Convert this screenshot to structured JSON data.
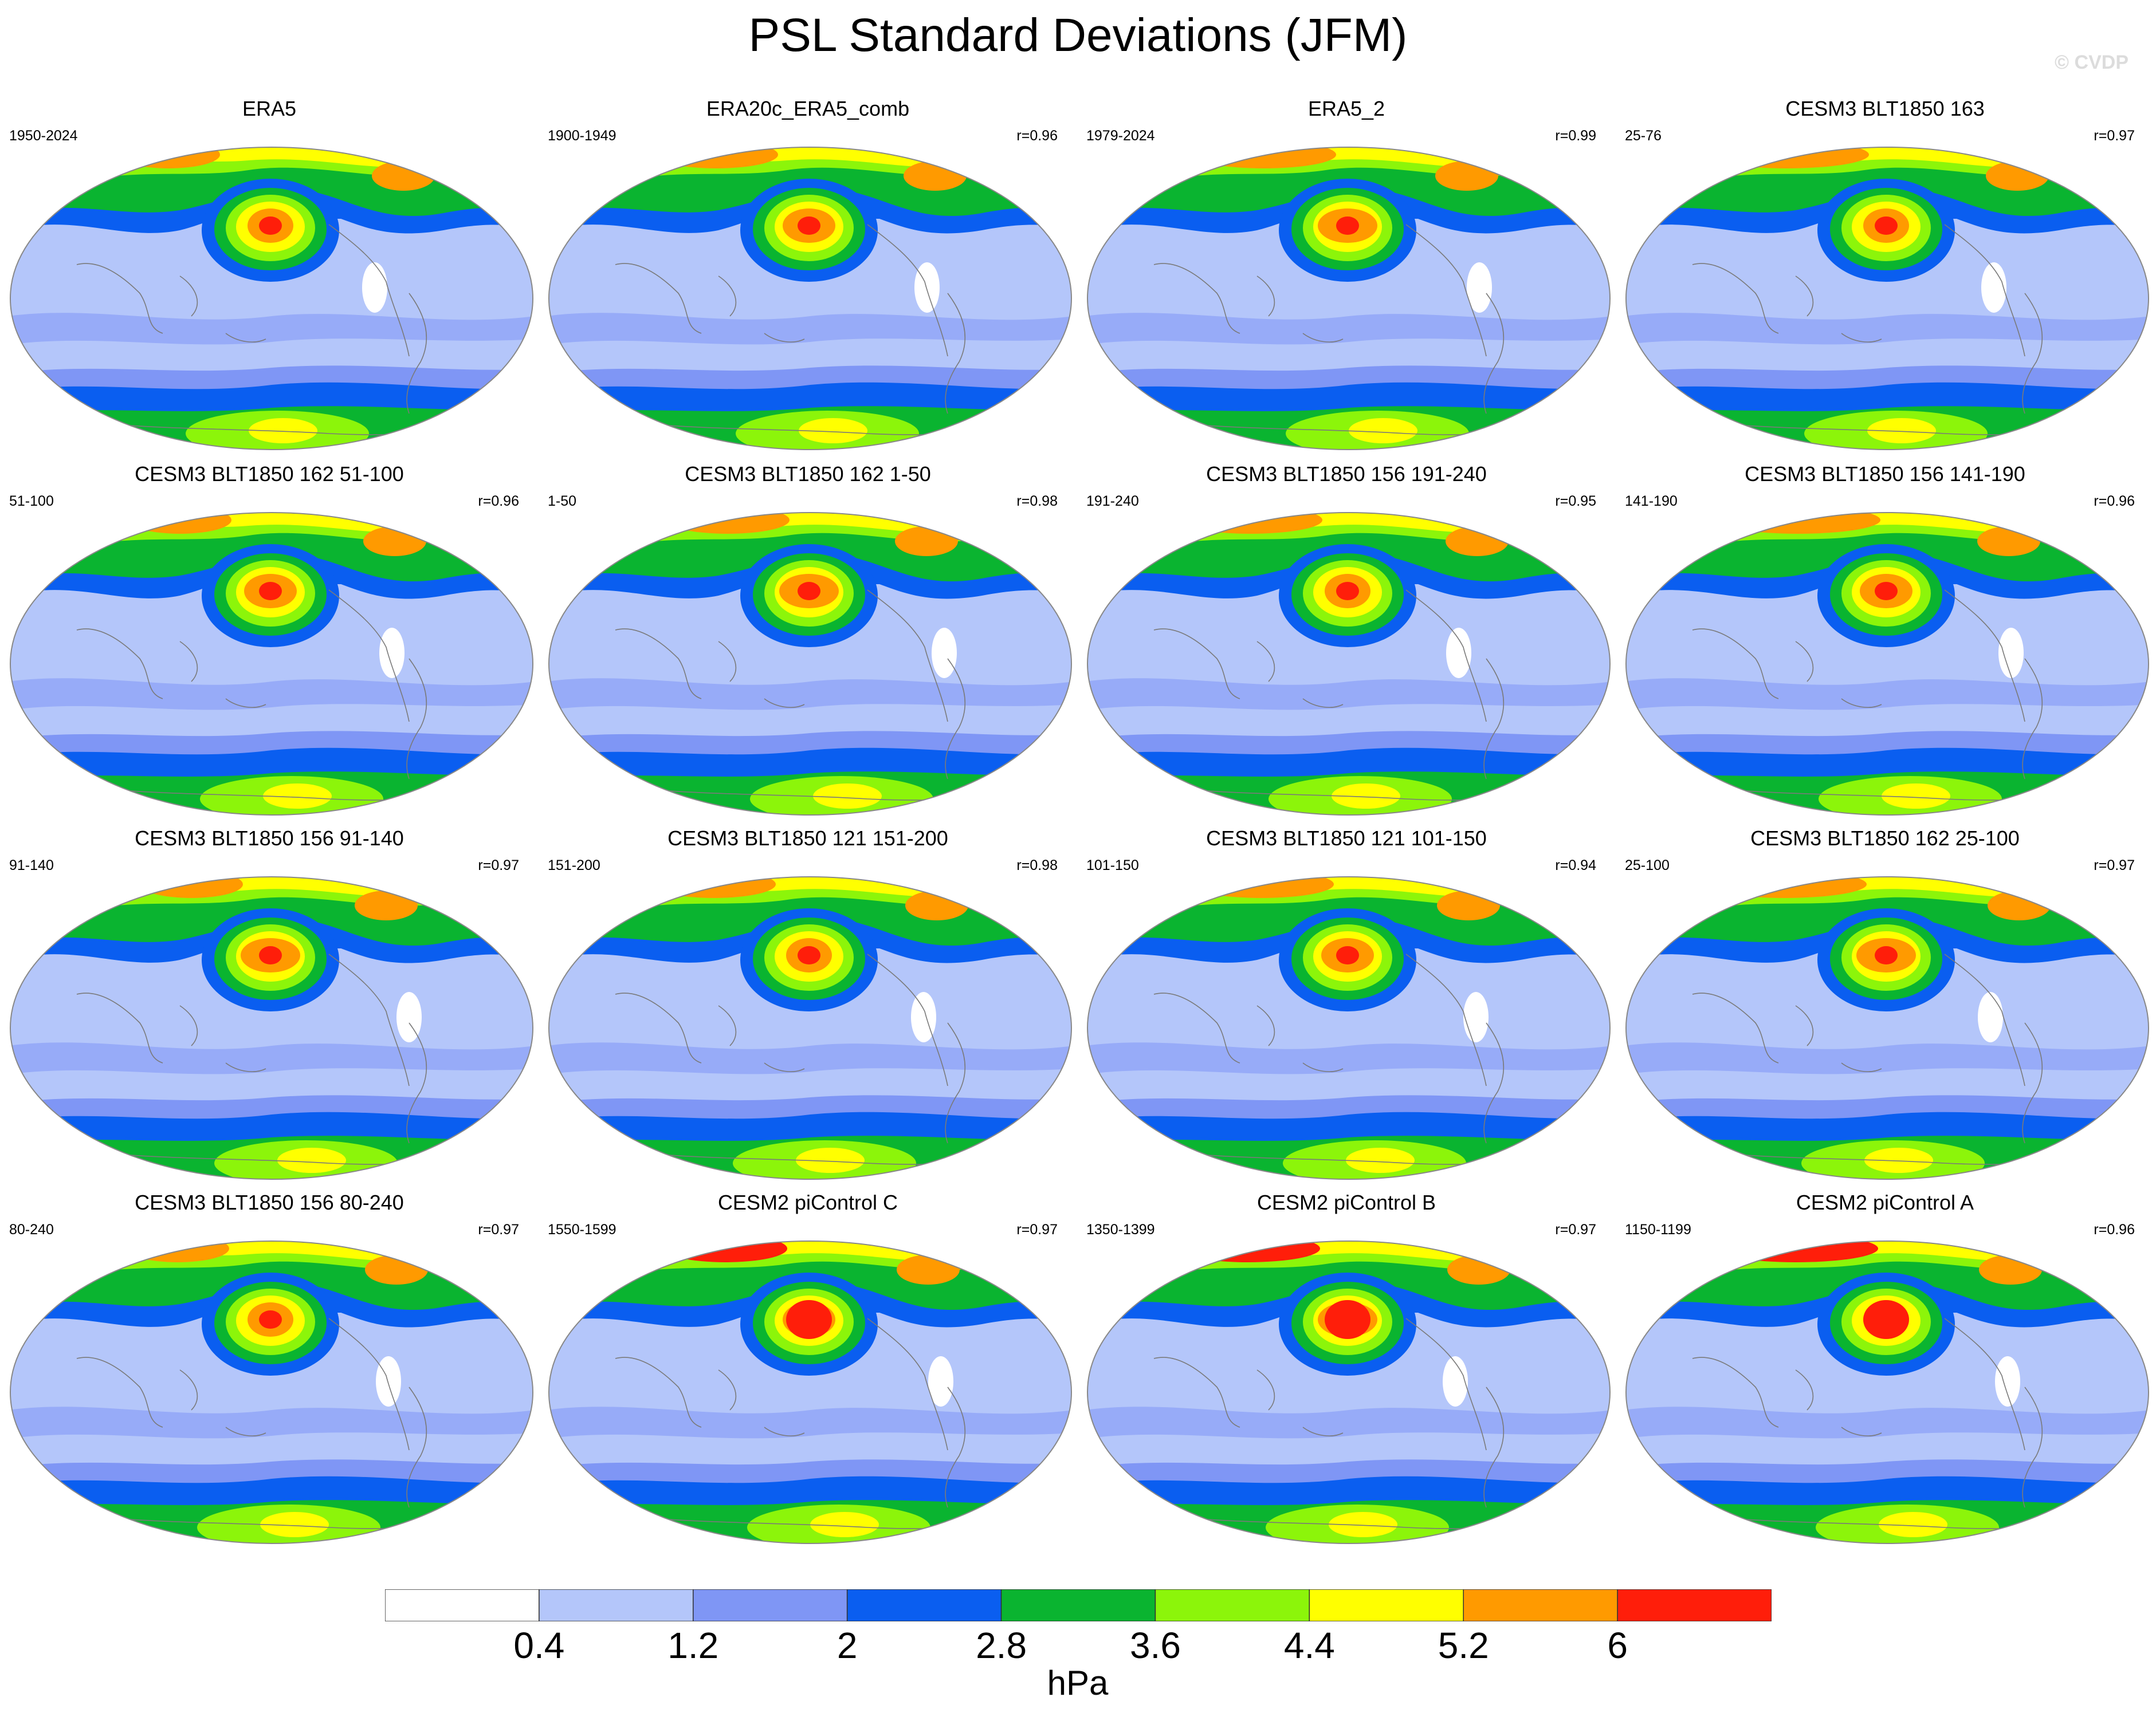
{
  "title": "PSL Standard Deviations (JFM)",
  "watermark": "© CVDP",
  "colors": {
    "levels": [
      "#ffffff",
      "#b4c6fa",
      "#7f96f5",
      "#0a5ef0",
      "#0ab430",
      "#8cf50a",
      "#ffff00",
      "#ff9a00",
      "#ff1e0a"
    ],
    "coastline": "#7a7a7a",
    "outline": "#888888"
  },
  "panels": [
    {
      "title": "ERA5",
      "period": "1950-2024",
      "r": ""
    },
    {
      "title": "ERA20c_ERA5_comb",
      "period": "1900-1949",
      "r": "r=0.96"
    },
    {
      "title": "ERA5_2",
      "period": "1979-2024",
      "r": "r=0.99"
    },
    {
      "title": "CESM3 BLT1850 163",
      "period": "25-76",
      "r": "r=0.97"
    },
    {
      "title": "CESM3 BLT1850 162 51-100",
      "period": "51-100",
      "r": "r=0.96"
    },
    {
      "title": "CESM3 BLT1850 162 1-50",
      "period": "1-50",
      "r": "r=0.98"
    },
    {
      "title": "CESM3 BLT1850 156 191-240",
      "period": "191-240",
      "r": "r=0.95"
    },
    {
      "title": "CESM3 BLT1850 156 141-190",
      "period": "141-190",
      "r": "r=0.96"
    },
    {
      "title": "CESM3 BLT1850 156 91-140",
      "period": "91-140",
      "r": "r=0.97"
    },
    {
      "title": "CESM3 BLT1850 121 151-200",
      "period": "151-200",
      "r": "r=0.98"
    },
    {
      "title": "CESM3 BLT1850 121 101-150",
      "period": "101-150",
      "r": "r=0.94"
    },
    {
      "title": "CESM3 BLT1850 162 25-100",
      "period": "25-100",
      "r": "r=0.97"
    },
    {
      "title": "CESM3 BLT1850 156 80-240",
      "period": "80-240",
      "r": "r=0.97"
    },
    {
      "title": "CESM2 piControl C",
      "period": "1550-1599",
      "r": "r=0.97"
    },
    {
      "title": "CESM2 piControl B",
      "period": "1350-1399",
      "r": "r=0.97"
    },
    {
      "title": "CESM2 piControl A",
      "period": "1150-1199",
      "r": "r=0.96"
    }
  ],
  "colorbar": {
    "labels": [
      "0.4",
      "1.2",
      "2",
      "2.8",
      "3.6",
      "4.4",
      "5.2",
      "6"
    ],
    "units": "hPa"
  }
}
